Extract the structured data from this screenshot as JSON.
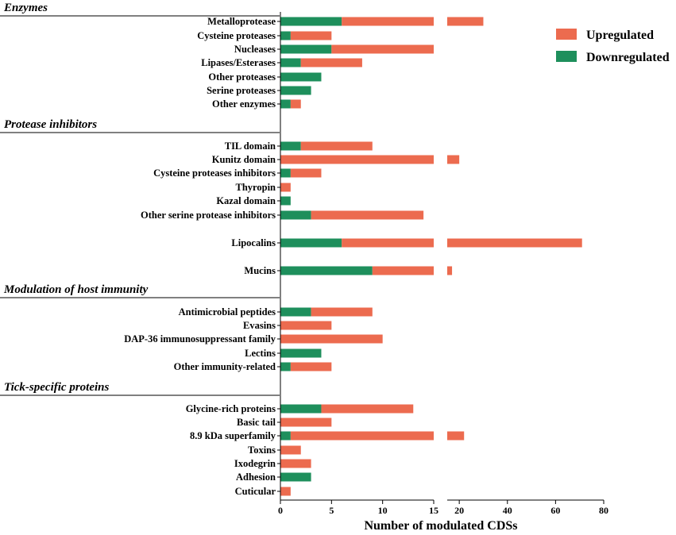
{
  "chart_data": {
    "type": "bar",
    "orientation": "horizontal",
    "stacked": true,
    "broken_axis": true,
    "xlabel": "Number of modulated CDSs",
    "x_ticks_segment1": [
      0,
      5,
      10,
      15
    ],
    "x_ticks_segment2": [
      20,
      40,
      60,
      80
    ],
    "xlim_segment1": [
      0,
      15
    ],
    "xlim_segment2": [
      15,
      80
    ],
    "colors": {
      "Upregulated": "#ec6b4f",
      "Downregulated": "#1e8f5c"
    },
    "legend": [
      "Upregulated",
      "Downregulated"
    ],
    "legend_position": "top-right",
    "groups": [
      {
        "section": "Enzymes",
        "rows": [
          {
            "name": "Metalloprotease",
            "down": 6,
            "up": 24
          },
          {
            "name": "Cysteine proteases",
            "down": 1,
            "up": 4
          },
          {
            "name": "Nucleases",
            "down": 5,
            "up": 10
          },
          {
            "name": "Lipases/Esterases",
            "down": 2,
            "up": 6
          },
          {
            "name": "Other proteases",
            "down": 4,
            "up": 0
          },
          {
            "name": "Serine proteases",
            "down": 3,
            "up": 0
          },
          {
            "name": "Other enzymes",
            "down": 1,
            "up": 1
          }
        ]
      },
      {
        "section": "Protease inhibitors",
        "rows": [
          {
            "name": "TIL domain",
            "down": 2,
            "up": 7
          },
          {
            "name": "Kunitz domain",
            "down": 0,
            "up": 20
          },
          {
            "name": "Cysteine proteases inhibitors",
            "down": 1,
            "up": 3
          },
          {
            "name": "Thyropin",
            "down": 0,
            "up": 1
          },
          {
            "name": "Kazal domain",
            "down": 1,
            "up": 0
          },
          {
            "name": "Other serine protease inhibitors",
            "down": 3,
            "up": 11
          }
        ]
      },
      {
        "section": "",
        "rows": [
          {
            "name": "Lipocalins",
            "down": 6,
            "up": 65
          }
        ]
      },
      {
        "section": "",
        "rows": [
          {
            "name": "Mucins",
            "down": 9,
            "up": 8
          }
        ]
      },
      {
        "section": "Modulation of host immunity",
        "rows": [
          {
            "name": "Antimicrobial peptides",
            "down": 3,
            "up": 6
          },
          {
            "name": "Evasins",
            "down": 0,
            "up": 5
          },
          {
            "name": "DAP-36 immunosuppressant family",
            "down": 0,
            "up": 10
          },
          {
            "name": "Lectins",
            "down": 4,
            "up": 0
          },
          {
            "name": "Other immunity-related",
            "down": 1,
            "up": 4
          }
        ]
      },
      {
        "section": "Tick-specific proteins",
        "rows": [
          {
            "name": "Glycine-rich proteins",
            "down": 4,
            "up": 9
          },
          {
            "name": "Basic tail",
            "down": 0,
            "up": 5
          },
          {
            "name": "8.9 kDa superfamily",
            "down": 1,
            "up": 21
          },
          {
            "name": "Toxins",
            "down": 0,
            "up": 2
          },
          {
            "name": "Ixodegrin",
            "down": 0,
            "up": 3
          },
          {
            "name": "Adhesion",
            "down": 3,
            "up": 0
          },
          {
            "name": "Cuticular",
            "down": 0,
            "up": 1
          }
        ]
      }
    ]
  }
}
